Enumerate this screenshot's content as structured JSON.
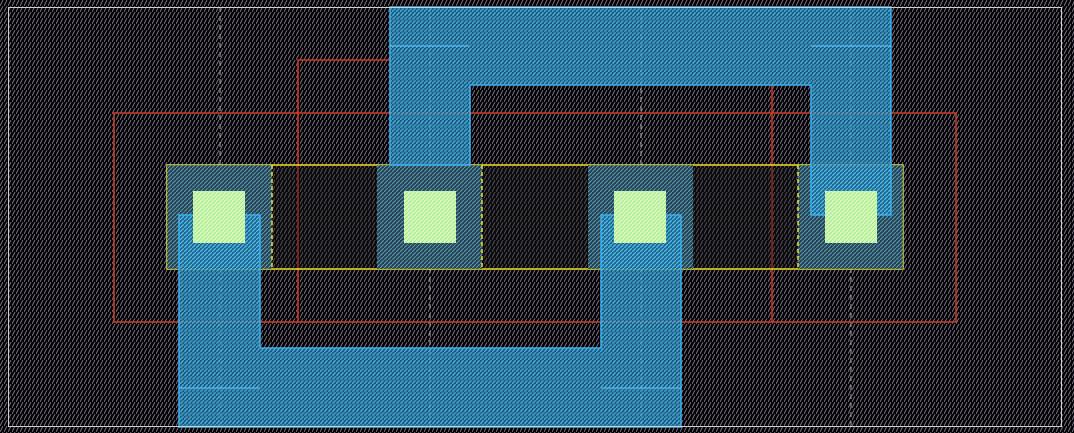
{
  "colors": {
    "background": "#000000",
    "hatch": "#8a7f96",
    "boundary": "#d0d0d0",
    "poly_outline": "#e03020",
    "active_outline": "#f0e020",
    "metal": "#3aa8e8",
    "contact": "#c8f0a0"
  },
  "layers": [
    "boundary",
    "implant",
    "poly",
    "active",
    "metal1",
    "contact"
  ]
}
